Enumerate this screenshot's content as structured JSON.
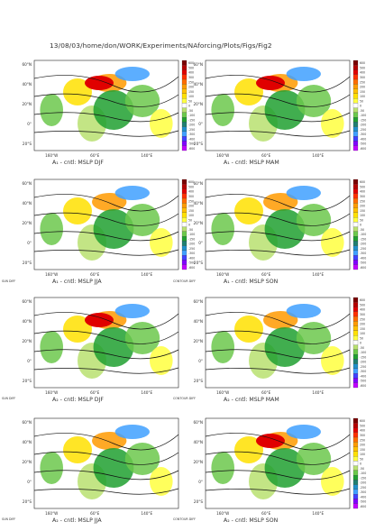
{
  "header": {
    "path": "13/08/03/home/don/WORK/Experiments/NAforcing/Plots/Figs/Fig2"
  },
  "map": {
    "lat_ticks": [
      "60°N",
      "40°N",
      "20°N",
      "0°",
      "20°S"
    ],
    "lon_ticks": [
      "160°W",
      "60°E",
      "140°E"
    ]
  },
  "colorbar": {
    "levels": [
      "600",
      "500",
      "400",
      "300",
      "250",
      "200",
      "150",
      "100",
      "50",
      "0",
      "-50",
      "-100",
      "-150",
      "-200",
      "-250",
      "-300",
      "-400",
      "-500",
      "-600"
    ],
    "colors": [
      "#7a0000",
      "#b40000",
      "#e00000",
      "#ff3000",
      "#ff6c00",
      "#ff9a00",
      "#ffc000",
      "#ffe000",
      "#ffff40",
      "#ffffff",
      "#b8e070",
      "#6cc84c",
      "#20a030",
      "#208070",
      "#2090c8",
      "#40a0ff",
      "#4040ff",
      "#8000ff",
      "#c000ff"
    ]
  },
  "tags": {
    "sun": "SUN DIFF",
    "contour": "CONTOUR DIFF"
  },
  "chart_data": [
    {
      "type": "heatmap",
      "title": "A₁ - cntl: MSLP DJF",
      "colorbar": true
    },
    {
      "type": "heatmap",
      "title": "A₁ - cntl: MSLP MAM",
      "colorbar": true
    },
    {
      "type": "heatmap",
      "title": "A₁ - cntl: MSLP JJA",
      "colorbar": true
    },
    {
      "type": "heatmap",
      "title": "A₁ - cntl: MSLP SON",
      "colorbar": true
    },
    {
      "type": "heatmap",
      "title": "A₂ - cntl: MSLP DJF",
      "colorbar": false
    },
    {
      "type": "heatmap",
      "title": "A₂ - cntl: MSLP MAM",
      "colorbar": true
    },
    {
      "type": "heatmap",
      "title": "A₂ - cntl: MSLP JJA",
      "colorbar": false
    },
    {
      "type": "heatmap",
      "title": "A₂ - cntl: MSLP SON",
      "colorbar": true
    }
  ]
}
